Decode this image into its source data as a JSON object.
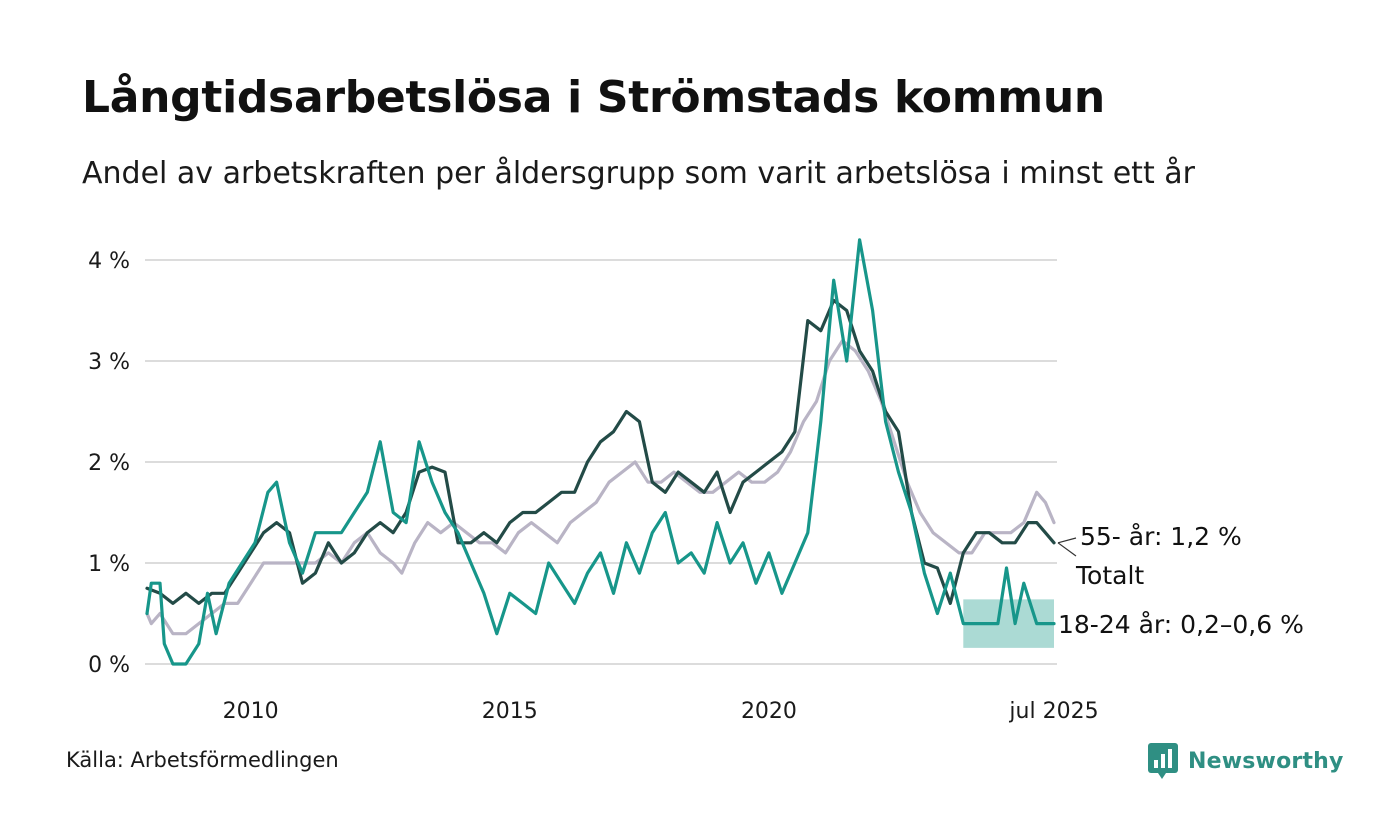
{
  "header": {
    "title": "Långtidsarbetslösa i Strömstads kommun",
    "subtitle": "Andel av arbetskraften per åldersgrupp som varit arbetslösa i minst ett år"
  },
  "footer": {
    "source": "Källa: Arbetsförmedlingen",
    "brand": "Newsworthy",
    "brand_icon": "newsworthy-bar-chart-icon",
    "brand_color": "#2f8f83"
  },
  "chart_data": {
    "type": "line",
    "ylim": [
      0,
      4.2
    ],
    "y_ticks": [
      0,
      1,
      2,
      3,
      4
    ],
    "y_tick_labels": [
      "0 %",
      "1 %",
      "2 %",
      "3 %",
      "4 %"
    ],
    "x_range": [
      "2008-01",
      "2025-07"
    ],
    "x_ticks": [
      "2010-01",
      "2015-01",
      "2020-01",
      "2025-07"
    ],
    "x_tick_labels": [
      "2010",
      "2015",
      "2020",
      "jul 2025"
    ],
    "grid": true,
    "legend": "direct labels at right end of lines",
    "colors": {
      "totalt": "#b9b4c5",
      "age_55": "#234b47",
      "age_18_24": "#17968a",
      "band": "#a6d8d2"
    },
    "series": [
      {
        "name": "Totalt",
        "label": "Totalt",
        "color": "#b9b4c5",
        "points": [
          [
            "2008-01",
            0.5
          ],
          [
            "2008-02",
            0.4
          ],
          [
            "2008-04",
            0.5
          ],
          [
            "2008-07",
            0.3
          ],
          [
            "2008-10",
            0.3
          ],
          [
            "2009-01",
            0.4
          ],
          [
            "2009-04",
            0.5
          ],
          [
            "2009-07",
            0.6
          ],
          [
            "2009-10",
            0.6
          ],
          [
            "2010-01",
            0.8
          ],
          [
            "2010-04",
            1.0
          ],
          [
            "2010-07",
            1.0
          ],
          [
            "2010-10",
            1.0
          ],
          [
            "2011-01",
            1.0
          ],
          [
            "2011-04",
            1.0
          ],
          [
            "2011-07",
            1.1
          ],
          [
            "2011-10",
            1.0
          ],
          [
            "2012-01",
            1.2
          ],
          [
            "2012-04",
            1.3
          ],
          [
            "2012-07",
            1.1
          ],
          [
            "2012-10",
            1.0
          ],
          [
            "2012-12",
            0.9
          ],
          [
            "2013-03",
            1.2
          ],
          [
            "2013-06",
            1.4
          ],
          [
            "2013-09",
            1.3
          ],
          [
            "2013-12",
            1.4
          ],
          [
            "2014-03",
            1.3
          ],
          [
            "2014-06",
            1.2
          ],
          [
            "2014-09",
            1.2
          ],
          [
            "2014-12",
            1.1
          ],
          [
            "2015-03",
            1.3
          ],
          [
            "2015-06",
            1.4
          ],
          [
            "2015-09",
            1.3
          ],
          [
            "2015-12",
            1.2
          ],
          [
            "2016-03",
            1.4
          ],
          [
            "2016-06",
            1.5
          ],
          [
            "2016-09",
            1.6
          ],
          [
            "2016-12",
            1.8
          ],
          [
            "2017-03",
            1.9
          ],
          [
            "2017-06",
            2.0
          ],
          [
            "2017-09",
            1.8
          ],
          [
            "2017-12",
            1.8
          ],
          [
            "2018-03",
            1.9
          ],
          [
            "2018-06",
            1.8
          ],
          [
            "2018-09",
            1.7
          ],
          [
            "2018-12",
            1.7
          ],
          [
            "2019-03",
            1.8
          ],
          [
            "2019-06",
            1.9
          ],
          [
            "2019-09",
            1.8
          ],
          [
            "2019-12",
            1.8
          ],
          [
            "2020-03",
            1.9
          ],
          [
            "2020-06",
            2.1
          ],
          [
            "2020-09",
            2.4
          ],
          [
            "2020-12",
            2.6
          ],
          [
            "2021-03",
            3.0
          ],
          [
            "2021-06",
            3.2
          ],
          [
            "2021-09",
            3.1
          ],
          [
            "2021-12",
            2.9
          ],
          [
            "2022-03",
            2.6
          ],
          [
            "2022-06",
            2.2
          ],
          [
            "2022-09",
            1.8
          ],
          [
            "2022-12",
            1.5
          ],
          [
            "2023-03",
            1.3
          ],
          [
            "2023-06",
            1.2
          ],
          [
            "2023-09",
            1.1
          ],
          [
            "2023-12",
            1.1
          ],
          [
            "2024-03",
            1.3
          ],
          [
            "2024-06",
            1.3
          ],
          [
            "2024-09",
            1.3
          ],
          [
            "2024-12",
            1.4
          ],
          [
            "2025-03",
            1.7
          ],
          [
            "2025-05",
            1.6
          ],
          [
            "2025-07",
            1.4
          ]
        ]
      },
      {
        "name": "55- år",
        "label": "55- år: 1,2 %",
        "color": "#234b47",
        "points": [
          [
            "2008-01",
            0.75
          ],
          [
            "2008-04",
            0.7
          ],
          [
            "2008-07",
            0.6
          ],
          [
            "2008-10",
            0.7
          ],
          [
            "2009-01",
            0.6
          ],
          [
            "2009-04",
            0.7
          ],
          [
            "2009-07",
            0.7
          ],
          [
            "2009-10",
            0.9
          ],
          [
            "2010-01",
            1.1
          ],
          [
            "2010-04",
            1.3
          ],
          [
            "2010-07",
            1.4
          ],
          [
            "2010-10",
            1.3
          ],
          [
            "2011-01",
            0.8
          ],
          [
            "2011-04",
            0.9
          ],
          [
            "2011-07",
            1.2
          ],
          [
            "2011-10",
            1.0
          ],
          [
            "2012-01",
            1.1
          ],
          [
            "2012-04",
            1.3
          ],
          [
            "2012-07",
            1.4
          ],
          [
            "2012-10",
            1.3
          ],
          [
            "2013-01",
            1.5
          ],
          [
            "2013-04",
            1.9
          ],
          [
            "2013-07",
            1.95
          ],
          [
            "2013-10",
            1.9
          ],
          [
            "2014-01",
            1.2
          ],
          [
            "2014-04",
            1.2
          ],
          [
            "2014-07",
            1.3
          ],
          [
            "2014-10",
            1.2
          ],
          [
            "2015-01",
            1.4
          ],
          [
            "2015-04",
            1.5
          ],
          [
            "2015-07",
            1.5
          ],
          [
            "2015-10",
            1.6
          ],
          [
            "2016-01",
            1.7
          ],
          [
            "2016-04",
            1.7
          ],
          [
            "2016-07",
            2.0
          ],
          [
            "2016-10",
            2.2
          ],
          [
            "2017-01",
            2.3
          ],
          [
            "2017-04",
            2.5
          ],
          [
            "2017-07",
            2.4
          ],
          [
            "2017-10",
            1.8
          ],
          [
            "2018-01",
            1.7
          ],
          [
            "2018-04",
            1.9
          ],
          [
            "2018-07",
            1.8
          ],
          [
            "2018-10",
            1.7
          ],
          [
            "2019-01",
            1.9
          ],
          [
            "2019-04",
            1.5
          ],
          [
            "2019-07",
            1.8
          ],
          [
            "2019-10",
            1.9
          ],
          [
            "2020-01",
            2.0
          ],
          [
            "2020-04",
            2.1
          ],
          [
            "2020-07",
            2.3
          ],
          [
            "2020-10",
            3.4
          ],
          [
            "2021-01",
            3.3
          ],
          [
            "2021-04",
            3.6
          ],
          [
            "2021-07",
            3.5
          ],
          [
            "2021-10",
            3.1
          ],
          [
            "2022-01",
            2.9
          ],
          [
            "2022-04",
            2.5
          ],
          [
            "2022-07",
            2.3
          ],
          [
            "2022-10",
            1.5
          ],
          [
            "2023-01",
            1.0
          ],
          [
            "2023-04",
            0.95
          ],
          [
            "2023-07",
            0.6
          ],
          [
            "2023-10",
            1.1
          ],
          [
            "2024-01",
            1.3
          ],
          [
            "2024-04",
            1.3
          ],
          [
            "2024-07",
            1.2
          ],
          [
            "2024-10",
            1.2
          ],
          [
            "2025-01",
            1.4
          ],
          [
            "2025-03",
            1.4
          ],
          [
            "2025-05",
            1.3
          ],
          [
            "2025-07",
            1.2
          ]
        ]
      },
      {
        "name": "18-24 år",
        "label": "18-24 år: 0,2–0,6 %",
        "color": "#17968a",
        "points": [
          [
            "2008-01",
            0.5
          ],
          [
            "2008-02",
            0.8
          ],
          [
            "2008-04",
            0.8
          ],
          [
            "2008-05",
            0.2
          ],
          [
            "2008-07",
            0.0
          ],
          [
            "2008-10",
            0.0
          ],
          [
            "2009-01",
            0.2
          ],
          [
            "2009-03",
            0.7
          ],
          [
            "2009-05",
            0.3
          ],
          [
            "2009-08",
            0.8
          ],
          [
            "2009-11",
            1.0
          ],
          [
            "2010-02",
            1.2
          ],
          [
            "2010-05",
            1.7
          ],
          [
            "2010-07",
            1.8
          ],
          [
            "2010-10",
            1.2
          ],
          [
            "2011-01",
            0.9
          ],
          [
            "2011-04",
            1.3
          ],
          [
            "2011-07",
            1.3
          ],
          [
            "2011-10",
            1.3
          ],
          [
            "2012-01",
            1.5
          ],
          [
            "2012-04",
            1.7
          ],
          [
            "2012-07",
            2.2
          ],
          [
            "2012-10",
            1.5
          ],
          [
            "2013-01",
            1.4
          ],
          [
            "2013-04",
            2.2
          ],
          [
            "2013-07",
            1.8
          ],
          [
            "2013-10",
            1.5
          ],
          [
            "2014-01",
            1.3
          ],
          [
            "2014-04",
            1.0
          ],
          [
            "2014-07",
            0.7
          ],
          [
            "2014-10",
            0.3
          ],
          [
            "2015-01",
            0.7
          ],
          [
            "2015-04",
            0.6
          ],
          [
            "2015-07",
            0.5
          ],
          [
            "2015-10",
            1.0
          ],
          [
            "2016-01",
            0.8
          ],
          [
            "2016-04",
            0.6
          ],
          [
            "2016-07",
            0.9
          ],
          [
            "2016-10",
            1.1
          ],
          [
            "2017-01",
            0.7
          ],
          [
            "2017-04",
            1.2
          ],
          [
            "2017-07",
            0.9
          ],
          [
            "2017-10",
            1.3
          ],
          [
            "2018-01",
            1.5
          ],
          [
            "2018-04",
            1.0
          ],
          [
            "2018-07",
            1.1
          ],
          [
            "2018-10",
            0.9
          ],
          [
            "2019-01",
            1.4
          ],
          [
            "2019-04",
            1.0
          ],
          [
            "2019-07",
            1.2
          ],
          [
            "2019-10",
            0.8
          ],
          [
            "2020-01",
            1.1
          ],
          [
            "2020-04",
            0.7
          ],
          [
            "2020-07",
            1.0
          ],
          [
            "2020-10",
            1.3
          ],
          [
            "2021-01",
            2.4
          ],
          [
            "2021-04",
            3.8
          ],
          [
            "2021-07",
            3.0
          ],
          [
            "2021-10",
            4.2
          ],
          [
            "2022-01",
            3.5
          ],
          [
            "2022-04",
            2.4
          ],
          [
            "2022-07",
            1.9
          ],
          [
            "2022-10",
            1.5
          ],
          [
            "2023-01",
            0.9
          ],
          [
            "2023-04",
            0.5
          ],
          [
            "2023-07",
            0.9
          ],
          [
            "2023-10",
            0.4
          ],
          [
            "2024-03",
            0.4
          ],
          [
            "2024-06",
            0.4
          ],
          [
            "2024-08",
            0.95
          ],
          [
            "2024-10",
            0.4
          ],
          [
            "2024-12",
            0.8
          ],
          [
            "2025-03",
            0.4
          ],
          [
            "2025-07",
            0.4
          ]
        ],
        "uncertainty_band": [
          [
            "2023-10",
            0.16,
            0.64
          ],
          [
            "2025-07",
            0.16,
            0.64
          ]
        ]
      }
    ]
  }
}
